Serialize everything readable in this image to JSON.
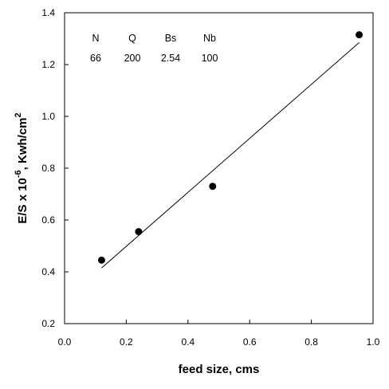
{
  "chart_data": {
    "type": "scatter",
    "xlabel": "feed size, cms",
    "ylabel_parts": [
      "E/S x 10",
      "-6",
      ", Kwh/cm",
      "2"
    ],
    "xlim": [
      0.0,
      1.0
    ],
    "ylim": [
      0.2,
      1.4
    ],
    "xticks": [
      "0.0",
      "0.2",
      "0.4",
      "0.6",
      "0.8",
      "1.0"
    ],
    "yticks": [
      "0.2",
      "0.4",
      "0.6",
      "0.8",
      "1.0",
      "1.2",
      "1.4"
    ],
    "series": [
      {
        "x": [
          0.12,
          0.24,
          0.48,
          0.955
        ],
        "y": [
          0.445,
          0.555,
          0.73,
          1.315
        ]
      }
    ],
    "fit_line": {
      "x": [
        0.12,
        0.955
      ],
      "y": [
        0.415,
        1.285
      ]
    },
    "parameters": [
      {
        "label": "N",
        "value": "66"
      },
      {
        "label": "Q",
        "value": "200"
      },
      {
        "label": "Bs",
        "value": "2.54"
      },
      {
        "label": "Nb",
        "value": "100"
      }
    ],
    "grid": false,
    "marker_color": "#000000",
    "line_color": "#000000"
  }
}
